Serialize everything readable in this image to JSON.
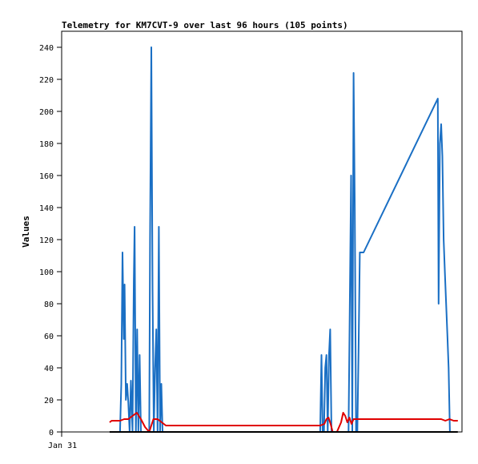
{
  "chart_data": {
    "type": "line",
    "title": "Telemetry for KM7CVT-9 over last 96 hours (105 points)",
    "xlabel": "",
    "ylabel": "Values",
    "x_tick_labels": [
      "Jan 31"
    ],
    "ylim": [
      0,
      250
    ],
    "y_ticks": [
      0,
      20,
      40,
      60,
      80,
      100,
      120,
      140,
      160,
      180,
      200,
      220,
      240
    ],
    "grid": false,
    "legend": "none",
    "x_unit": "hours",
    "xlim": [
      0,
      96
    ],
    "series": [
      {
        "color": "#1a6fc4",
        "x": [
          14.0,
          14.3,
          14.6,
          14.9,
          15.1,
          15.4,
          15.7,
          16.0,
          16.3,
          16.6,
          17.0,
          17.3,
          17.5,
          17.8,
          18.1,
          18.4,
          18.7,
          19.0,
          19.3,
          21.0,
          21.2,
          21.5,
          21.8,
          22.1,
          22.4,
          22.7,
          23.0,
          23.3,
          23.6,
          23.9,
          24.2,
          24.5,
          62.0,
          62.3,
          62.6,
          62.9,
          63.2,
          63.5,
          63.8,
          64.1,
          64.4,
          64.7,
          65.0,
          65.3,
          65.6,
          68.8,
          69.1,
          69.4,
          69.7,
          70.0,
          70.3,
          70.6,
          70.9,
          71.2,
          71.5,
          71.8,
          72.1,
          72.4,
          90.2,
          90.4,
          90.7,
          91.0,
          91.3,
          91.6,
          91.9,
          92.2,
          92.5,
          92.8,
          93.1,
          93.4,
          93.7,
          94.0,
          94.3
        ],
        "y": [
          0,
          30,
          112,
          58,
          92,
          20,
          30,
          18,
          0,
          32,
          0,
          94,
          128,
          0,
          64,
          0,
          48,
          0,
          0,
          0,
          120,
          240,
          90,
          0,
          40,
          64,
          0,
          128,
          0,
          30,
          0,
          0,
          0,
          48,
          0,
          0,
          40,
          48,
          0,
          48,
          64,
          0,
          0,
          0,
          0,
          0,
          80,
          160,
          0,
          224,
          140,
          0,
          0,
          50,
          112,
          112,
          112,
          112,
          208,
          80,
          180,
          192,
          172,
          120,
          100,
          80,
          60,
          40,
          0,
          0,
          0,
          0,
          0
        ]
      },
      {
        "color": "#e00000",
        "x": [
          11.5,
          12.0,
          13.0,
          14.0,
          15.0,
          16.0,
          17.0,
          18.0,
          19.0,
          20.0,
          21.0,
          21.5,
          22.0,
          22.5,
          23.0,
          24.0,
          25.0,
          30.0,
          40.0,
          50.0,
          60.0,
          62.0,
          63.0,
          63.5,
          64.0,
          64.5,
          65.0,
          66.0,
          67.0,
          67.5,
          68.0,
          68.5,
          69.0,
          69.5,
          70.0,
          80.0,
          90.0,
          91.0,
          92.0,
          93.0,
          94.0,
          95.0
        ],
        "y": [
          6,
          7,
          7,
          7,
          8,
          8,
          10,
          12,
          8,
          3,
          0,
          4,
          8,
          8,
          8,
          6,
          4,
          4,
          4,
          4,
          4,
          4,
          5,
          8,
          9,
          5,
          0,
          0,
          6,
          12,
          10,
          6,
          9,
          5,
          8,
          8,
          8,
          8,
          7,
          8,
          7,
          7
        ]
      },
      {
        "color": "#000000",
        "x": [
          11.5,
          95.0
        ],
        "y": [
          0,
          0
        ]
      }
    ]
  }
}
